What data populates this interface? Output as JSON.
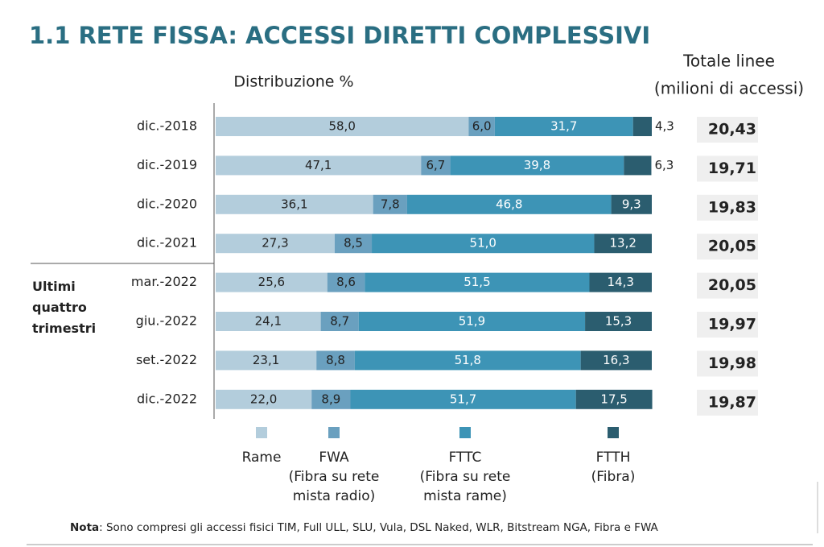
{
  "chart_data": {
    "type": "stacked-barh",
    "title": "1.1 RETE FISSA: ACCESSI DIRETTI COMPLESSIVI",
    "subtitle": "Distribuzione %",
    "group_label": "Ultimi quattro trimestri",
    "categories": [
      "dic.-2018",
      "dic.-2019",
      "dic.-2020",
      "dic.-2021",
      "mar.-2022",
      "giu.-2022",
      "set.-2022",
      "dic.-2022"
    ],
    "xlim": [
      0,
      100
    ],
    "series": [
      {
        "name": "Rame",
        "color": "#b3cddc",
        "values": [
          58.0,
          47.1,
          36.1,
          27.3,
          25.6,
          24.1,
          23.1,
          22.0
        ],
        "value_labels": [
          "58,0",
          "47,1",
          "36,1",
          "27,3",
          "25,6",
          "24,1",
          "23,1",
          "22,0"
        ]
      },
      {
        "name": "FWA",
        "note": "(Fibra su rete mista radio)",
        "color": "#6aa0bf",
        "values": [
          6.0,
          6.7,
          7.8,
          8.5,
          8.6,
          8.7,
          8.8,
          8.9
        ],
        "value_labels": [
          "6,0",
          "6,7",
          "7,8",
          "8,5",
          "8,6",
          "8,7",
          "8,8",
          "8,9"
        ]
      },
      {
        "name": "FTTC",
        "note": "(Fibra su rete mista rame)",
        "color": "#3d94b6",
        "values": [
          31.7,
          39.8,
          46.8,
          51.0,
          51.5,
          51.9,
          51.8,
          51.7
        ],
        "value_labels": [
          "31,7",
          "39,8",
          "46,8",
          "51,0",
          "51,5",
          "51,9",
          "51,8",
          "51,7"
        ]
      },
      {
        "name": "FTTH",
        "note": "(Fibra)",
        "color": "#2b5d6f",
        "values": [
          4.3,
          6.3,
          9.3,
          13.2,
          14.3,
          15.3,
          16.3,
          17.5
        ],
        "value_labels": [
          "4,3",
          "6,3",
          "9,3",
          "13,2",
          "14,3",
          "15,3",
          "16,3",
          "17,5"
        ]
      }
    ],
    "totals": {
      "title": "Totale linee",
      "subtitle": "(milioni di accessi)",
      "values": [
        20.43,
        19.71,
        19.83,
        20.05,
        20.05,
        19.97,
        19.98,
        19.87
      ],
      "value_labels": [
        "20,43",
        "19,71",
        "19,83",
        "20,05",
        "20,05",
        "19,97",
        "19,98",
        "19,87"
      ]
    },
    "note": {
      "label": "Nota",
      "text": ": Sono compresi gli accessi fisici TIM, Full ULL, SLU, Vula, DSL Naked, WLR, Bitstream NGA, Fibra e FWA"
    }
  }
}
